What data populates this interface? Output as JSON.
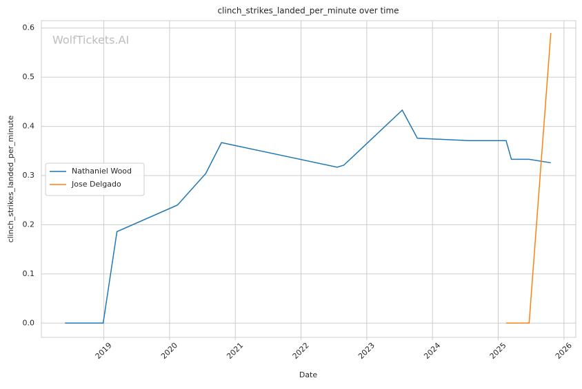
{
  "chart_data": {
    "type": "line",
    "title": "clinch_strikes_landed_per_minute over time",
    "watermark": "WolfTickets.AI",
    "x_label": "Date",
    "y_label": "clinch_strikes_landed_per_minute",
    "xlim": [
      2018.05,
      2026.18
    ],
    "ylim": [
      -0.029,
      0.615
    ],
    "xticks": [
      2019,
      2020,
      2021,
      2022,
      2023,
      2024,
      2025,
      2026
    ],
    "yticks": [
      {
        "value": 0,
        "label": "0.0"
      },
      0.1,
      0.2,
      0.3,
      0.4,
      0.5,
      0.6
    ],
    "grid": true,
    "legend": "center-left",
    "series": [
      {
        "name": "Nathaniel Wood",
        "color": "#1f77b4",
        "x": [
          2018.41,
          2018.99,
          2019.2,
          2020.12,
          2020.55,
          2020.79,
          2022.55,
          2022.65,
          2023.54,
          2023.77,
          2024.55,
          2025.12,
          2025.2,
          2025.47,
          2025.8
        ],
        "values": [
          0,
          0,
          0.186,
          0.24,
          0.304,
          0.367,
          0.317,
          0.321,
          0.433,
          0.376,
          0.371,
          0.371,
          0.333,
          0.333,
          0.326
        ]
      },
      {
        "name": "Jose Delgado",
        "color": "#ff7f0e",
        "x": [
          2025.12,
          2025.47,
          2025.8
        ],
        "values": [
          0,
          0,
          0.59
        ]
      }
    ]
  }
}
